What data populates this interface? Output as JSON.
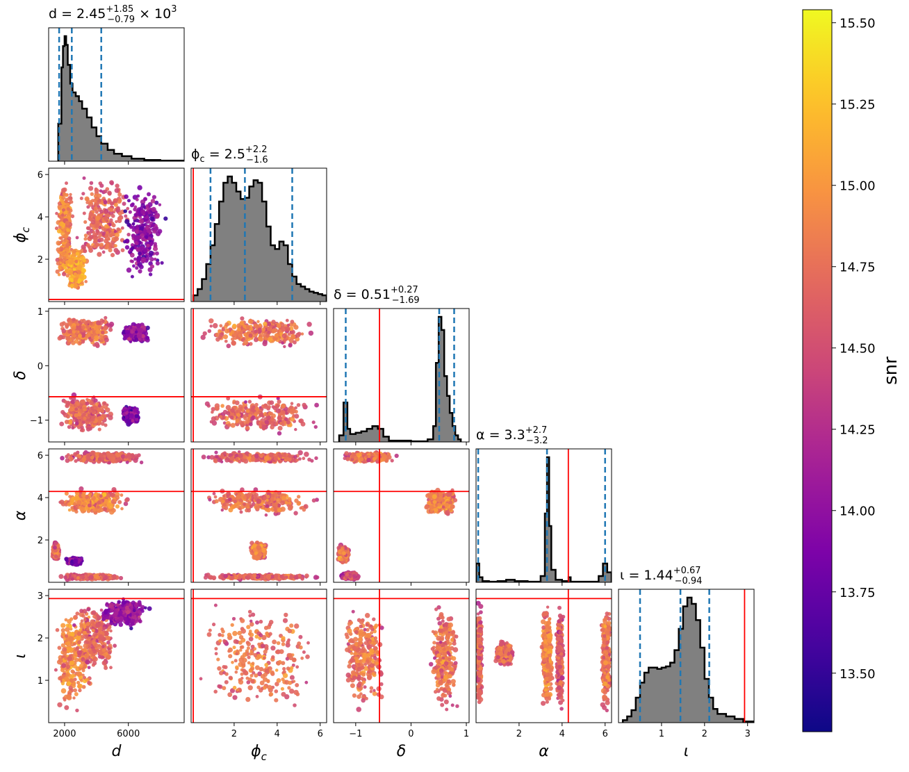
{
  "chart_data": {
    "type": "corner",
    "parameters": [
      {
        "key": "d",
        "label": "d",
        "title": "d = 2.45^{+1.85}_{-0.79} × 10^3",
        "range": [
          1000,
          9500
        ],
        "ticks": [
          2000,
          6000
        ],
        "tick_labels": [
          "2000",
          "6000"
        ],
        "median": 2450,
        "lower": 1660,
        "upper": 4300,
        "truth": null
      },
      {
        "key": "phi_c",
        "label": "ϕ_c",
        "title": "ϕ_c = 2.5^{+2.2}_{-1.6}",
        "range": [
          0,
          6.3
        ],
        "ticks": [
          2,
          4,
          6
        ],
        "tick_labels": [
          "2",
          "4",
          "6"
        ],
        "median": 2.5,
        "lower": 0.9,
        "upper": 4.7,
        "truth": 0.1
      },
      {
        "key": "delta",
        "label": "δ",
        "title": "δ = 0.51^{+0.27}_{-1.69}",
        "range": [
          -1.4,
          1.05
        ],
        "ticks": [
          -1,
          0,
          1
        ],
        "tick_labels": [
          "−1",
          "0",
          "1"
        ],
        "median": 0.51,
        "lower": -1.18,
        "upper": 0.78,
        "truth": -0.57
      },
      {
        "key": "alpha",
        "label": "α",
        "title": "α = 3.3^{+2.7}_{-3.2}",
        "range": [
          0,
          6.3
        ],
        "ticks": [
          2,
          4,
          6
        ],
        "tick_labels": [
          "2",
          "4",
          "6"
        ],
        "median": 3.3,
        "lower": 0.1,
        "upper": 6.0,
        "truth": 4.29
      },
      {
        "key": "iota",
        "label": "ι",
        "title": "ι = 1.44^{+0.67}_{-0.94}",
        "range": [
          0,
          3.15
        ],
        "ticks": [
          1,
          2,
          3
        ],
        "tick_labels": [
          "1",
          "2",
          "3"
        ],
        "median": 1.44,
        "lower": 0.5,
        "upper": 2.11,
        "truth": 2.93
      }
    ],
    "title_parts": [
      {
        "pre": "d = 2.45",
        "sup": "+1.85",
        "sub": "−0.79",
        "post": " × 10",
        "exp": "3"
      },
      {
        "pre": "ϕ",
        "presub": "c",
        "mid": " = 2.5",
        "sup": "+2.2",
        "sub": "−1.6"
      },
      {
        "pre": "δ = 0.51",
        "sup": "+0.27",
        "sub": "−1.69"
      },
      {
        "pre": "α = 3.3",
        "sup": "+2.7",
        "sub": "−3.2"
      },
      {
        "pre": "ι = 1.44",
        "sup": "+0.67",
        "sub": "−0.94"
      }
    ],
    "row_labels": [
      {
        "main": "ϕ",
        "sub": "c"
      },
      {
        "main": "δ",
        "sub": ""
      },
      {
        "main": "α",
        "sub": ""
      },
      {
        "main": "ι",
        "sub": ""
      }
    ],
    "col_labels": [
      {
        "main": "d",
        "sub": ""
      },
      {
        "main": "ϕ",
        "sub": "c"
      },
      {
        "main": "δ",
        "sub": ""
      },
      {
        "main": "α",
        "sub": ""
      },
      {
        "main": "ι",
        "sub": ""
      }
    ],
    "row_ticks": [
      {
        "ticks": [
          2,
          4,
          6
        ],
        "labels": [
          "2",
          "4",
          "6"
        ]
      },
      {
        "ticks": [
          -1,
          0,
          1
        ],
        "labels": [
          "−1",
          "0",
          "1"
        ]
      },
      {
        "ticks": [
          2,
          4,
          6
        ],
        "labels": [
          "2",
          "4",
          "6"
        ]
      },
      {
        "ticks": [
          1,
          2,
          3
        ],
        "labels": [
          "1",
          "2",
          "3"
        ]
      }
    ],
    "histograms": [
      {
        "param": "d",
        "bins": [
          1600,
          1800,
          1900,
          2000,
          2100,
          2200,
          2350,
          2500,
          2700,
          2900,
          3100,
          3400,
          3700,
          4000,
          4300,
          4700,
          5100,
          5600,
          6200,
          7000,
          8000,
          9500
        ],
        "counts": [
          0.3,
          0.75,
          0.92,
          1.0,
          0.93,
          0.77,
          0.62,
          0.55,
          0.52,
          0.48,
          0.42,
          0.35,
          0.27,
          0.2,
          0.14,
          0.09,
          0.06,
          0.04,
          0.02,
          0.01,
          0.005
        ]
      },
      {
        "param": "phi_c",
        "bins": [
          0.1,
          0.3,
          0.5,
          0.7,
          0.9,
          1.1,
          1.3,
          1.5,
          1.7,
          1.9,
          2.1,
          2.3,
          2.5,
          2.7,
          2.9,
          3.1,
          3.3,
          3.5,
          3.7,
          3.9,
          4.1,
          4.3,
          4.5,
          4.7,
          4.9,
          5.1,
          5.3,
          5.5,
          5.7,
          5.9,
          6.1,
          6.3
        ],
        "counts": [
          0.05,
          0.1,
          0.18,
          0.3,
          0.45,
          0.62,
          0.8,
          0.95,
          1.0,
          0.95,
          0.88,
          0.82,
          0.83,
          0.92,
          0.97,
          0.95,
          0.8,
          0.6,
          0.45,
          0.42,
          0.48,
          0.45,
          0.3,
          0.2,
          0.14,
          0.12,
          0.1,
          0.08,
          0.07,
          0.06,
          0.05
        ]
      },
      {
        "param": "delta",
        "bins": [
          -1.3,
          -1.22,
          -1.15,
          -1.1,
          -1.0,
          -0.9,
          -0.8,
          -0.7,
          -0.6,
          -0.5,
          -0.4,
          0.0,
          0.3,
          0.4,
          0.45,
          0.5,
          0.55,
          0.6,
          0.65,
          0.7,
          0.75,
          0.8,
          0.85,
          0.9
        ],
        "counts": [
          0.05,
          0.3,
          0.1,
          0.06,
          0.07,
          0.08,
          0.1,
          0.12,
          0.1,
          0.04,
          0.01,
          0.005,
          0.02,
          0.12,
          0.6,
          0.95,
          0.85,
          0.5,
          0.35,
          0.22,
          0.12,
          0.05,
          0.02
        ]
      },
      {
        "param": "alpha",
        "bins": [
          0,
          0.15,
          0.3,
          0.6,
          1.0,
          1.4,
          1.8,
          2.4,
          3.0,
          3.2,
          3.3,
          3.4,
          3.5,
          3.7,
          4.0,
          4.3,
          4.4,
          5.0,
          5.7,
          5.9,
          6.1,
          6.3
        ],
        "counts": [
          0.15,
          0.04,
          0.01,
          0.005,
          0.01,
          0.02,
          0.01,
          0.005,
          0.05,
          0.55,
          1.0,
          0.45,
          0.1,
          0.02,
          0.01,
          0.04,
          0.005,
          0.005,
          0.05,
          0.15,
          0.08
        ]
      },
      {
        "param": "iota",
        "bins": [
          0.1,
          0.2,
          0.3,
          0.4,
          0.5,
          0.6,
          0.7,
          0.8,
          0.9,
          1.0,
          1.1,
          1.2,
          1.3,
          1.4,
          1.5,
          1.6,
          1.7,
          1.8,
          1.9,
          2.0,
          2.1,
          2.2,
          2.3,
          2.5,
          2.7,
          2.9,
          3.15
        ],
        "counts": [
          0.02,
          0.05,
          0.1,
          0.2,
          0.32,
          0.4,
          0.44,
          0.44,
          0.43,
          0.44,
          0.45,
          0.48,
          0.58,
          0.75,
          0.93,
          1.0,
          0.95,
          0.82,
          0.6,
          0.35,
          0.2,
          0.11,
          0.07,
          0.05,
          0.03,
          0.01
        ]
      }
    ],
    "scatter_regions": [
      {
        "row": 1,
        "col": 0,
        "blobs": [
          {
            "x": [
              1400,
              2600
            ],
            "y": [
              0.2,
              6.2
            ],
            "c": 15.2
          },
          {
            "x": [
              2000,
              3500
            ],
            "y": [
              0.3,
              2.8
            ],
            "c": 15.4
          },
          {
            "x": [
              2500,
              6500
            ],
            "y": [
              1.5,
              6.2
            ],
            "c": 15.0
          },
          {
            "x": [
              5500,
              8500
            ],
            "y": [
              0.5,
              6.0
            ],
            "c": 14.3
          }
        ]
      },
      {
        "row": 2,
        "col": 0,
        "blobs": [
          {
            "x": [
              1200,
              5500
            ],
            "y": [
              0.3,
              0.95
            ],
            "c": 15.1
          },
          {
            "x": [
              1200,
              5500
            ],
            "y": [
              -1.3,
              -0.5
            ],
            "c": 15.0
          },
          {
            "x": [
              5500,
              7500
            ],
            "y": [
              0.4,
              0.8
            ],
            "c": 14.4
          },
          {
            "x": [
              5500,
              6800
            ],
            "y": [
              -1.1,
              -0.7
            ],
            "c": 14.3
          }
        ]
      },
      {
        "row": 3,
        "col": 0,
        "blobs": [
          {
            "x": [
              1200,
              7500
            ],
            "y": [
              5.6,
              6.2
            ],
            "c": 15.0
          },
          {
            "x": [
              1200,
              6500
            ],
            "y": [
              3.1,
              4.5
            ],
            "c": 15.2
          },
          {
            "x": [
              1200,
              1700
            ],
            "y": [
              1.0,
              2.0
            ],
            "c": 15.1
          },
          {
            "x": [
              1200,
              6000
            ],
            "y": [
              0.1,
              0.4
            ],
            "c": 15.0
          },
          {
            "x": [
              2000,
              3200
            ],
            "y": [
              0.8,
              1.2
            ],
            "c": 14.3
          }
        ]
      },
      {
        "row": 4,
        "col": 0,
        "blobs": [
          {
            "x": [
              1200,
              4000
            ],
            "y": [
              0.1,
              3.0
            ],
            "c": 15.2
          },
          {
            "x": [
              2500,
              5500
            ],
            "y": [
              1.0,
              3.0
            ],
            "c": 15.0
          },
          {
            "x": [
              4000,
              7500
            ],
            "y": [
              2.2,
              3.0
            ],
            "c": 14.4
          }
        ]
      },
      {
        "row": 2,
        "col": 1,
        "blobs": [
          {
            "x": [
              0,
              6.3
            ],
            "y": [
              0.3,
              0.95
            ],
            "c": 15.1
          },
          {
            "x": [
              0,
              6.3
            ],
            "y": [
              -1.3,
              -0.5
            ],
            "c": 15.0
          }
        ]
      },
      {
        "row": 3,
        "col": 1,
        "blobs": [
          {
            "x": [
              0,
              6.3
            ],
            "y": [
              5.6,
              6.2
            ],
            "c": 15.0
          },
          {
            "x": [
              0,
              6.3
            ],
            "y": [
              3.1,
              4.5
            ],
            "c": 15.1
          },
          {
            "x": [
              2.7,
              3.6
            ],
            "y": [
              1.0,
              2.0
            ],
            "c": 15.2
          },
          {
            "x": [
              0,
              6.3
            ],
            "y": [
              0.1,
              0.4
            ],
            "c": 15.0
          }
        ]
      },
      {
        "row": 4,
        "col": 1,
        "blobs": [
          {
            "x": [
              0,
              6.3
            ],
            "y": [
              0.1,
              3.0
            ],
            "c": 15.1
          }
        ]
      },
      {
        "row": 3,
        "col": 2,
        "blobs": [
          {
            "x": [
              -1.3,
              -0.2
            ],
            "y": [
              5.6,
              6.2
            ],
            "c": 15.1
          },
          {
            "x": [
              0.2,
              0.9
            ],
            "y": [
              3.1,
              4.5
            ],
            "c": 15.2
          },
          {
            "x": [
              -1.35,
              -1.1
            ],
            "y": [
              0.8,
              1.8
            ],
            "c": 15.1
          },
          {
            "x": [
              -1.3,
              -0.9
            ],
            "y": [
              0.1,
              0.5
            ],
            "c": 14.8
          }
        ]
      },
      {
        "row": 4,
        "col": 2,
        "blobs": [
          {
            "x": [
              -1.3,
              -0.4
            ],
            "y": [
              0.1,
              3.0
            ],
            "c": 15.1
          },
          {
            "x": [
              0.3,
              0.9
            ],
            "y": [
              0.1,
              3.0
            ],
            "c": 15.1
          }
        ]
      },
      {
        "row": 4,
        "col": 3,
        "blobs": [
          {
            "x": [
              0,
              0.3
            ],
            "y": [
              0.1,
              3.0
            ],
            "c": 15.0
          },
          {
            "x": [
              0.8,
              1.8
            ],
            "y": [
              1.3,
              2.0
            ],
            "c": 15.1
          },
          {
            "x": [
              3.0,
              3.6
            ],
            "y": [
              0.1,
              3.0
            ],
            "c": 15.2
          },
          {
            "x": [
              3.7,
              4.1
            ],
            "y": [
              0.1,
              3.0
            ],
            "c": 15.0
          },
          {
            "x": [
              5.8,
              6.3
            ],
            "y": [
              0.1,
              3.0
            ],
            "c": 15.1
          }
        ]
      }
    ],
    "colorbar": {
      "label": "snr",
      "range": [
        13.32,
        15.54
      ],
      "ticks": [
        13.5,
        13.75,
        14.0,
        14.25,
        14.5,
        14.75,
        15.0,
        15.25,
        15.5
      ],
      "tick_labels": [
        "13.50",
        "13.75",
        "14.00",
        "14.25",
        "14.50",
        "14.75",
        "15.00",
        "15.25",
        "15.50"
      ],
      "colormap": "plasma"
    },
    "colors": {
      "hist_fill": "#808080",
      "hist_edge": "#000000",
      "quantile_line": "#1f77b4",
      "truth_line": "#ff0000"
    }
  }
}
